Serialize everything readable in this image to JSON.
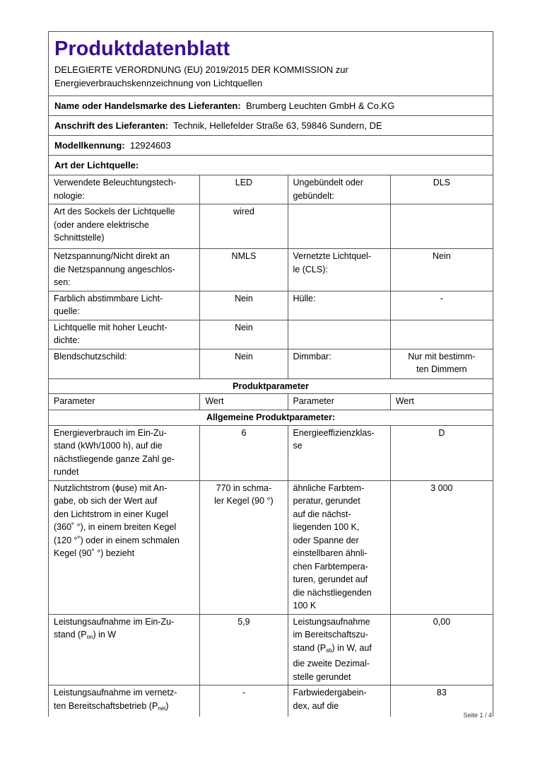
{
  "header": {
    "title": "Produktdatenblatt",
    "subtitle_line1": "DELEGIERTE VERORDNUNG (EU) 2019/2015 DER KOMMISSION zur",
    "subtitle_line2": "Energieverbrauchskennzeichnung von Lichtquellen"
  },
  "supplier": {
    "name_label": "Name oder Handelsmarke des Lieferanten:",
    "name_value": "Brumberg Leuchten GmbH & Co.KG",
    "address_label": "Anschrift des Lieferanten:",
    "address_value": "Technik, Hellefelder Straße 63, 59846 Sundern, DE",
    "model_label": "Modellkennung:",
    "model_value": "12924603",
    "type_label": "Art der Lichtquelle:"
  },
  "type_rows": [
    [
      "Verwendete Beleuchtungstech-\nnologie:",
      "LED",
      "Ungebündelt oder\ngebündelt:",
      "DLS"
    ],
    [
      "Art des Sockels der Lichtquelle\n(oder andere elektrische\nSchnittstelle)",
      "wired",
      "",
      ""
    ],
    [
      "Netzspannung/Nicht direkt an\ndie Netzspannung angeschlos-\nsen:",
      "NMLS",
      "Vernetzte Lichtquel-\nle (CLS):",
      "Nein"
    ],
    [
      "Farblich abstimmbare Licht-\nquelle:",
      "Nein",
      "Hülle:",
      "-"
    ],
    [
      "Lichtquelle mit hoher Leucht-\ndichte:",
      "Nein",
      "",
      ""
    ],
    [
      "Blendschutzschild:",
      "Nein",
      "Dimmbar:",
      "Nur mit bestimm-\nten Dimmern"
    ]
  ],
  "params": {
    "section_title": "Produktparameter",
    "col_headers": [
      "Parameter",
      "Wert",
      "Parameter",
      "Wert"
    ],
    "general_title": "Allgemeine Produktparameter:"
  },
  "param_rows": {
    "r1": [
      "Energieverbrauch im Ein-Zu-\nstand (kWh/1000 h), auf die\nnächstliegende ganze Zahl ge-\nrundet",
      "6",
      "Energieeffizienzklas-\nse",
      "D"
    ],
    "r2": [
      "Nutzlichtstrom (ɸuse) mit An-\ngabe, ob sich der Wert auf\nden Lichtstrom in einer Kugel\n(360˚ °), in einem breiten Kegel\n(120 °˚) oder in einem schmalen\nKegel (90˚ °) bezieht",
      "770 in schma-\nler Kegel (90 °)",
      "ähnliche Farbtem-\nperatur, gerundet\nauf die nächst-\nliegenden 100 K,\noder Spanne der\neinstellbaren ähnli-\nchen Farbtempera-\nturen, gerundet auf\ndie nächstliegenden\n100 K",
      "3 000"
    ],
    "r3": {
      "a_pre": "Leistungsaufnahme im Ein-Zu-\nstand (P",
      "a_sub": "on",
      "a_post": ") in W",
      "b": "5,9",
      "c_pre": "Leistungsaufnahme\nim Bereitschaftszu-\nstand (P",
      "c_sub": "sb",
      "c_post": ") in W, auf\ndie zweite Dezimal-\nstelle gerundet",
      "d": "0,00"
    },
    "r4": {
      "a_pre": "Leistungsaufnahme im vernetz-\nten Bereitschaftsbetrieb (P",
      "a_sub": "net",
      "a_post": ")",
      "b": "-",
      "c": "Farbwiedergabein-\ndex, auf die",
      "d": "83"
    }
  },
  "footer": {
    "page": "Seite 1 / 4"
  }
}
